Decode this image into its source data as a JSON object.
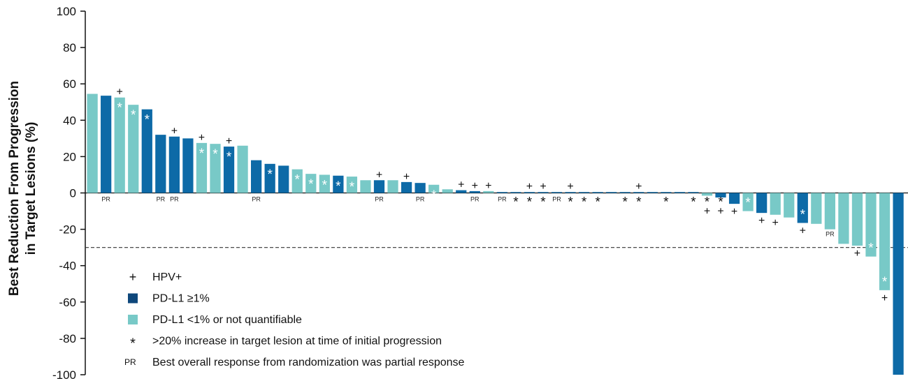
{
  "chart_data": {
    "type": "bar",
    "ylabel_line1": "Best Reduction From Progression",
    "ylabel_line2": "in Target Lesions (%)",
    "ylim": [
      -100,
      100
    ],
    "yticks": [
      "100",
      "80",
      "60",
      "40",
      "20",
      "0",
      "-20",
      "-40",
      "-60",
      "-80",
      "-100"
    ],
    "ytick_values": [
      100,
      80,
      60,
      40,
      20,
      0,
      -20,
      -40,
      -60,
      -80,
      -100
    ],
    "threshold": -30,
    "colors": {
      "dark": "#0d6aa7",
      "light": "#78c9c7",
      "legend_dark": "#0e477b"
    },
    "legend": {
      "items": [
        {
          "symbol": "+",
          "text": "HPV+"
        },
        {
          "symbol": "square-dark",
          "text": "PD-L1 ≥1%"
        },
        {
          "symbol": "square-light",
          "text": "PD-L1 <1% or not quantifiable"
        },
        {
          "symbol": "*",
          "text": ">20% increase in target lesion at time of initial progression"
        },
        {
          "symbol": "PR",
          "text": "Best overall response from randomization was partial response"
        }
      ]
    },
    "bars": [
      {
        "value": 54.5,
        "color": "light",
        "plus": false,
        "star": false,
        "pr": false
      },
      {
        "value": 53.5,
        "color": "dark",
        "plus": false,
        "star": false,
        "pr": true
      },
      {
        "value": 52.5,
        "color": "light",
        "plus": true,
        "star": true,
        "pr": false
      },
      {
        "value": 48.5,
        "color": "light",
        "plus": false,
        "star": true,
        "pr": false
      },
      {
        "value": 46.0,
        "color": "dark",
        "plus": false,
        "star": true,
        "pr": false
      },
      {
        "value": 32.0,
        "color": "dark",
        "plus": false,
        "star": false,
        "pr": true
      },
      {
        "value": 31.0,
        "color": "dark",
        "plus": true,
        "star": false,
        "pr": true
      },
      {
        "value": 30.0,
        "color": "dark",
        "plus": false,
        "star": false,
        "pr": false
      },
      {
        "value": 27.5,
        "color": "light",
        "plus": true,
        "star": true,
        "pr": false
      },
      {
        "value": 27.0,
        "color": "light",
        "plus": false,
        "star": true,
        "pr": false
      },
      {
        "value": 25.5,
        "color": "dark",
        "plus": true,
        "star": true,
        "pr": false
      },
      {
        "value": 26.0,
        "color": "light",
        "plus": false,
        "star": false,
        "pr": false
      },
      {
        "value": 18.0,
        "color": "dark",
        "plus": false,
        "star": false,
        "pr": true
      },
      {
        "value": 16.0,
        "color": "dark",
        "plus": false,
        "star": true,
        "pr": false
      },
      {
        "value": 15.0,
        "color": "dark",
        "plus": false,
        "star": false,
        "pr": false
      },
      {
        "value": 13.0,
        "color": "light",
        "plus": false,
        "star": true,
        "pr": false
      },
      {
        "value": 10.5,
        "color": "light",
        "plus": false,
        "star": true,
        "pr": false
      },
      {
        "value": 10.0,
        "color": "light",
        "plus": false,
        "star": true,
        "pr": false
      },
      {
        "value": 9.5,
        "color": "dark",
        "plus": false,
        "star": true,
        "pr": false
      },
      {
        "value": 9.0,
        "color": "light",
        "plus": false,
        "star": true,
        "pr": false
      },
      {
        "value": 7.0,
        "color": "light",
        "plus": false,
        "star": false,
        "pr": false
      },
      {
        "value": 7.0,
        "color": "dark",
        "plus": true,
        "star": false,
        "pr": true
      },
      {
        "value": 7.0,
        "color": "light",
        "plus": false,
        "star": false,
        "pr": false
      },
      {
        "value": 6.0,
        "color": "dark",
        "plus": true,
        "star": false,
        "pr": false
      },
      {
        "value": 5.5,
        "color": "dark",
        "plus": false,
        "star": false,
        "pr": true
      },
      {
        "value": 4.5,
        "color": "light",
        "plus": false,
        "star": true,
        "pr": false
      },
      {
        "value": 2.0,
        "color": "light",
        "plus": false,
        "star": false,
        "pr": false
      },
      {
        "value": 1.5,
        "color": "dark",
        "plus": true,
        "star": false,
        "pr": false
      },
      {
        "value": 1.0,
        "color": "dark",
        "plus": true,
        "star": false,
        "pr": true
      },
      {
        "value": 1.0,
        "color": "light",
        "plus": true,
        "star": false,
        "pr": false
      },
      {
        "value": 0.5,
        "color": "dark",
        "plus": false,
        "star": false,
        "pr": true
      },
      {
        "value": 0.5,
        "color": "dark",
        "plus": false,
        "star": true,
        "pr": false
      },
      {
        "value": 0.5,
        "color": "dark",
        "plus": true,
        "star": true,
        "pr": false
      },
      {
        "value": 0.5,
        "color": "dark",
        "plus": true,
        "star": true,
        "pr": false
      },
      {
        "value": 0.5,
        "color": "dark",
        "plus": false,
        "star": false,
        "pr": true
      },
      {
        "value": 0.5,
        "color": "dark",
        "plus": true,
        "star": true,
        "pr": false
      },
      {
        "value": 0.5,
        "color": "dark",
        "plus": false,
        "star": true,
        "pr": false
      },
      {
        "value": 0.5,
        "color": "dark",
        "plus": false,
        "star": true,
        "pr": false
      },
      {
        "value": 0.5,
        "color": "dark",
        "plus": false,
        "star": false,
        "pr": false
      },
      {
        "value": 0.5,
        "color": "dark",
        "plus": false,
        "star": true,
        "pr": false
      },
      {
        "value": 0.5,
        "color": "dark",
        "plus": true,
        "star": true,
        "pr": false
      },
      {
        "value": 0.5,
        "color": "dark",
        "plus": false,
        "star": false,
        "pr": false
      },
      {
        "value": 0.5,
        "color": "dark",
        "plus": false,
        "star": true,
        "pr": false
      },
      {
        "value": 0.5,
        "color": "dark",
        "plus": false,
        "star": false,
        "pr": false
      },
      {
        "value": 0.5,
        "color": "dark",
        "plus": false,
        "star": true,
        "pr": false
      },
      {
        "value": -1.5,
        "color": "light",
        "plus": true,
        "star": true,
        "pr": false
      },
      {
        "value": -2.5,
        "color": "dark",
        "plus": true,
        "star": true,
        "pr": false
      },
      {
        "value": -6.0,
        "color": "dark",
        "plus": true,
        "star": false,
        "pr": false
      },
      {
        "value": -10.0,
        "color": "light",
        "plus": false,
        "star": true,
        "pr": false
      },
      {
        "value": -11.0,
        "color": "dark",
        "plus": true,
        "star": false,
        "pr": false
      },
      {
        "value": -12.0,
        "color": "light",
        "plus": true,
        "star": false,
        "pr": false
      },
      {
        "value": -13.5,
        "color": "light",
        "plus": false,
        "star": false,
        "pr": false
      },
      {
        "value": -16.5,
        "color": "dark",
        "plus": true,
        "star": true,
        "pr": false
      },
      {
        "value": -17.0,
        "color": "light",
        "plus": false,
        "star": false,
        "pr": false
      },
      {
        "value": -20.0,
        "color": "light",
        "plus": false,
        "star": false,
        "pr": true
      },
      {
        "value": -28.0,
        "color": "light",
        "plus": false,
        "star": false,
        "pr": false
      },
      {
        "value": -29.0,
        "color": "light",
        "plus": true,
        "star": false,
        "pr": false
      },
      {
        "value": -35.0,
        "color": "light",
        "plus": false,
        "star": true,
        "pr": false
      },
      {
        "value": -53.5,
        "color": "light",
        "plus": true,
        "star": true,
        "pr": false
      },
      {
        "value": -100.0,
        "color": "dark",
        "plus": false,
        "star": false,
        "pr": false
      }
    ],
    "symbols": {
      "plus": "+",
      "star": "*",
      "pr": "PR"
    },
    "grid": false,
    "legend_placement": "bottom-left"
  }
}
